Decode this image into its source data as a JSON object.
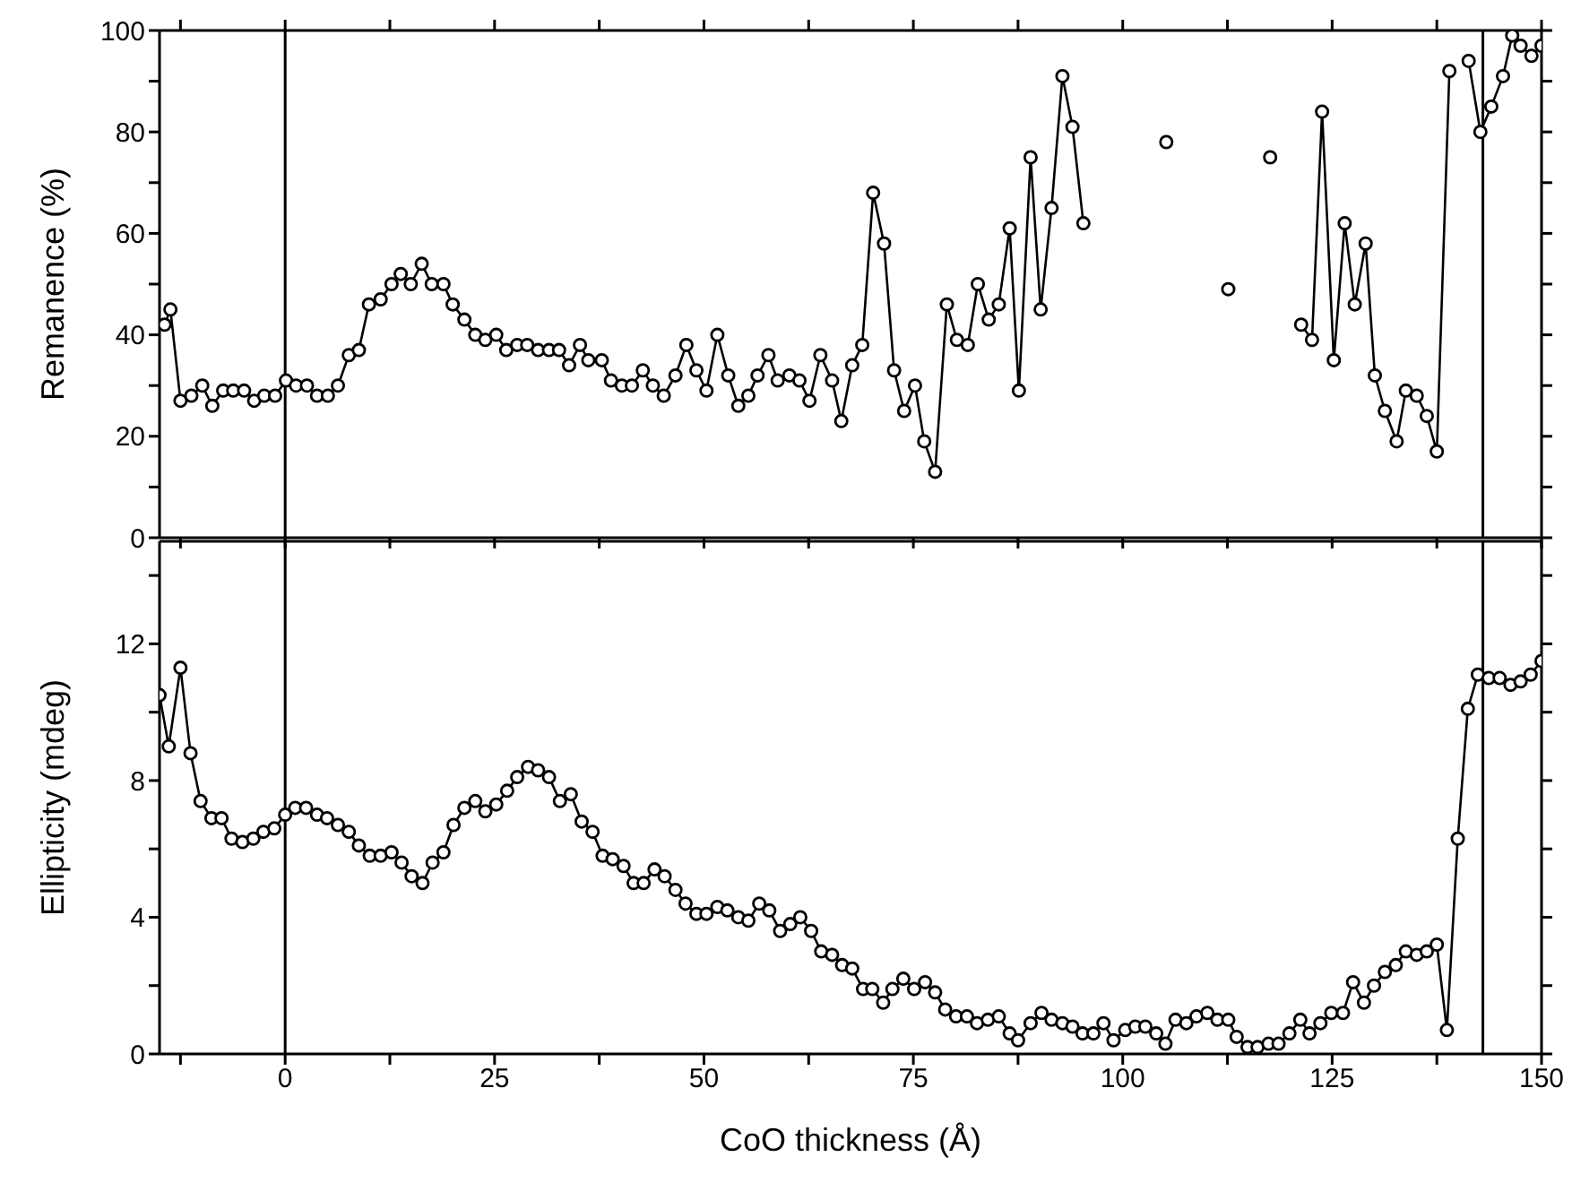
{
  "chart_data": [
    {
      "type": "line",
      "ylabel": "Remanence (%)",
      "tick_labels": "y",
      "marker": "circle",
      "xlim": [
        -15,
        150
      ],
      "xticks": [
        {
          "value": -12.5,
          "label": null
        },
        0,
        {
          "value": 12.5,
          "label": null
        },
        25,
        {
          "value": 37.5,
          "label": null
        },
        50,
        {
          "value": 62.5,
          "label": null
        },
        75,
        {
          "value": 87.5,
          "label": null
        },
        100,
        {
          "value": 112.5,
          "label": null
        },
        125,
        {
          "value": 137.5,
          "label": null
        },
        150
      ],
      "ylim": [
        0,
        100
      ],
      "yticks": [
        0,
        {
          "value": 10,
          "label": null
        },
        20,
        {
          "value": 30,
          "label": null
        },
        40,
        {
          "value": 50,
          "label": null
        },
        60,
        {
          "value": 70,
          "label": null
        },
        80,
        {
          "value": 90,
          "label": null
        },
        100
      ],
      "ref_lines": [
        {
          "axis": "x",
          "value": 0,
          "color": "#000000"
        },
        {
          "axis": "x",
          "value": 143,
          "color": "#000000"
        }
      ],
      "x": [
        -14.4,
        -13.7,
        -12.5,
        -11.2,
        -9.9,
        -8.7,
        -7.4,
        -6.2,
        -4.9,
        -3.7,
        -2.5,
        -1.2,
        0.1,
        1.3,
        2.6,
        3.8,
        5.1,
        6.3,
        7.6,
        8.8,
        10.0,
        11.4,
        12.7,
        13.8,
        15.0,
        16.3,
        17.5,
        18.9,
        20.0,
        21.4,
        22.7,
        23.9,
        25.2,
        26.4,
        27.7,
        28.9,
        30.2,
        31.5,
        32.7,
        33.9,
        35.2,
        36.2,
        37.8,
        38.9,
        40.2,
        41.4,
        42.7,
        43.9,
        45.2,
        46.6,
        47.9,
        49.1,
        50.3,
        51.6,
        52.9,
        54.1,
        55.3,
        56.4,
        57.7,
        58.8,
        60.2,
        61.4,
        62.6,
        63.9,
        65.3,
        66.4,
        67.7,
        68.9,
        70.2,
        71.5,
        72.7,
        73.9,
        75.2,
        76.3,
        77.6,
        79.0,
        80.2,
        81.5,
        82.7,
        84.0,
        85.2,
        86.5,
        87.6,
        89.0,
        90.2,
        91.5,
        92.8,
        94.0,
        95.3,
        96.5,
        104.0,
        105.2,
        106.5,
        111.3,
        112.6,
        113.9,
        116.3,
        117.6,
        118.9,
        120.1,
        121.3,
        122.6,
        123.8,
        125.2,
        126.5,
        127.7,
        129.0,
        130.1,
        131.3,
        132.7,
        133.8,
        135.1,
        136.3,
        137.5,
        139.0,
        140.1,
        141.3,
        142.7,
        144.0,
        145.4,
        146.5,
        147.5,
        148.8,
        150.0
      ],
      "series": [
        {
          "color": "#000000",
          "values": [
            42,
            45,
            27,
            28,
            30,
            26,
            29,
            29,
            29,
            27,
            28,
            28,
            31,
            30,
            30,
            28,
            28,
            30,
            36,
            37,
            46,
            47,
            50,
            52,
            50,
            54,
            50,
            50,
            46,
            43,
            40,
            39,
            40,
            37,
            38,
            38,
            37,
            37,
            37,
            34,
            38,
            35,
            35,
            31,
            30,
            30,
            33,
            30,
            28,
            32,
            38,
            33,
            29,
            40,
            32,
            26,
            28,
            32,
            36,
            31,
            32,
            31,
            27,
            36,
            31,
            23,
            34,
            38,
            68,
            58,
            33,
            25,
            30,
            19,
            13,
            46,
            39,
            38,
            50,
            43,
            46,
            61,
            29,
            75,
            45,
            65,
            91,
            81,
            62,
            null,
            null,
            78,
            null,
            null,
            49,
            null,
            null,
            75,
            null,
            null,
            42,
            39,
            84,
            35,
            62,
            46,
            58,
            32,
            25,
            19,
            29,
            28,
            24,
            17,
            92,
            null,
            94,
            80,
            85,
            91,
            99,
            97,
            95,
            97
          ]
        }
      ]
    },
    {
      "type": "line",
      "xlabel": "CoO thickness (Å)",
      "ylabel": "Ellipticity (mdeg)",
      "marker": "circle",
      "xlim": [
        -15,
        150
      ],
      "xticks": [
        {
          "value": -12.5,
          "label": null
        },
        0,
        {
          "value": 12.5,
          "label": null
        },
        25,
        {
          "value": 37.5,
          "label": null
        },
        50,
        {
          "value": 62.5,
          "label": null
        },
        75,
        {
          "value": 87.5,
          "label": null
        },
        100,
        {
          "value": 112.5,
          "label": null
        },
        125,
        {
          "value": 137.5,
          "label": null
        },
        150
      ],
      "ylim": [
        0,
        15
      ],
      "yticks": [
        0,
        {
          "value": 2,
          "label": null
        },
        4,
        {
          "value": 6,
          "label": null
        },
        8,
        {
          "value": 10,
          "label": null
        },
        12,
        {
          "value": 14,
          "label": null
        }
      ],
      "ref_lines": [
        {
          "axis": "x",
          "value": 0,
          "color": "#000000"
        },
        {
          "axis": "x",
          "value": 143,
          "color": "#000000"
        }
      ],
      "x": [
        -15.0,
        -13.9,
        -12.5,
        -11.3,
        -10.1,
        -8.8,
        -7.6,
        -6.4,
        -5.1,
        -3.8,
        -2.6,
        -1.3,
        0,
        1.2,
        2.5,
        3.8,
        5.0,
        6.3,
        7.6,
        8.8,
        10.1,
        11.4,
        12.7,
        13.9,
        15.1,
        16.4,
        17.6,
        18.9,
        20.1,
        21.4,
        22.7,
        23.9,
        25.2,
        26.5,
        27.7,
        29.0,
        30.2,
        31.5,
        32.8,
        34.1,
        35.4,
        36.7,
        37.9,
        39.1,
        40.4,
        41.6,
        42.8,
        44.1,
        45.3,
        46.6,
        47.8,
        49.1,
        50.3,
        51.6,
        52.8,
        54.1,
        55.3,
        56.6,
        57.8,
        59.1,
        60.3,
        61.5,
        62.8,
        64.0,
        65.3,
        66.5,
        67.7,
        69.0,
        70.1,
        71.4,
        72.5,
        73.8,
        75.1,
        76.4,
        77.6,
        78.8,
        80.1,
        81.4,
        82.6,
        83.9,
        85.2,
        86.5,
        87.5,
        89.0,
        90.3,
        91.5,
        92.8,
        94.0,
        95.2,
        96.5,
        97.7,
        98.9,
        100.3,
        101.5,
        102.7,
        104.0,
        105.1,
        106.3,
        107.6,
        108.8,
        110.1,
        111.3,
        112.6,
        113.6,
        114.9,
        116.1,
        117.4,
        118.6,
        119.9,
        121.2,
        122.3,
        123.6,
        124.9,
        126.3,
        127.5,
        128.8,
        130.0,
        131.3,
        132.6,
        133.8,
        135.1,
        136.3,
        137.5,
        138.7,
        140.0,
        141.2,
        142.4,
        143.7,
        145.0,
        146.3,
        147.5,
        148.7,
        150.0
      ],
      "series": [
        {
          "color": "#000000",
          "values": [
            10.5,
            9.0,
            11.3,
            8.8,
            7.4,
            6.9,
            6.9,
            6.3,
            6.2,
            6.3,
            6.5,
            6.6,
            7.0,
            7.2,
            7.2,
            7.0,
            6.9,
            6.7,
            6.5,
            6.1,
            5.8,
            5.8,
            5.9,
            5.6,
            5.2,
            5.0,
            5.6,
            5.9,
            6.7,
            7.2,
            7.4,
            7.1,
            7.3,
            7.7,
            8.1,
            8.4,
            8.3,
            8.1,
            7.4,
            7.6,
            6.8,
            6.5,
            5.8,
            5.7,
            5.5,
            5.0,
            5.0,
            5.4,
            5.2,
            4.8,
            4.4,
            4.1,
            4.1,
            4.3,
            4.2,
            4.0,
            3.9,
            4.4,
            4.2,
            3.6,
            3.8,
            4.0,
            3.6,
            3.0,
            2.9,
            2.6,
            2.5,
            1.9,
            1.9,
            1.5,
            1.9,
            2.2,
            1.9,
            2.1,
            1.8,
            1.3,
            1.1,
            1.1,
            0.9,
            1.0,
            1.1,
            0.6,
            0.4,
            0.9,
            1.2,
            1.0,
            0.9,
            0.8,
            0.6,
            0.6,
            0.9,
            0.4,
            0.7,
            0.8,
            0.8,
            0.6,
            0.3,
            1.0,
            0.9,
            1.1,
            1.2,
            1.0,
            1.0,
            0.5,
            0.2,
            0.2,
            0.3,
            0.3,
            0.6,
            1.0,
            0.6,
            0.9,
            1.2,
            1.2,
            2.1,
            1.5,
            2.0,
            2.4,
            2.6,
            3.0,
            2.9,
            3.0,
            3.2,
            0.7,
            6.3,
            10.1,
            11.1,
            11.0,
            11.0,
            10.8,
            10.9,
            11.1,
            11.5
          ]
        }
      ]
    }
  ]
}
